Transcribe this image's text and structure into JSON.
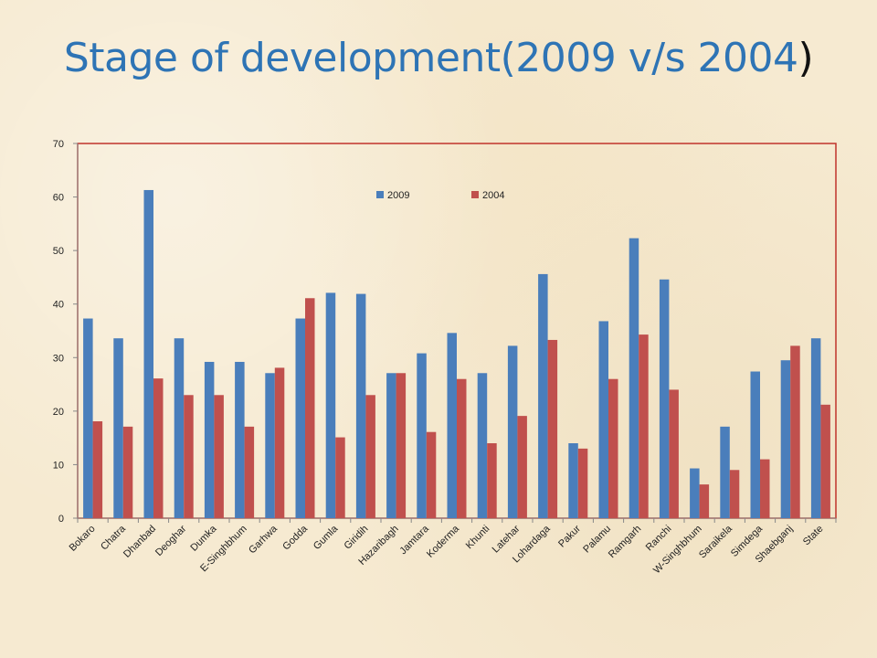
{
  "slide": {
    "title_main": "Stage of development(2009 v/s 2004",
    "title_close": ")"
  },
  "chart_data": {
    "type": "bar",
    "title": "",
    "xlabel": "",
    "ylabel": "",
    "ylim": [
      0,
      70
    ],
    "yticks": [
      0,
      10,
      20,
      30,
      40,
      50,
      60,
      70
    ],
    "grid": false,
    "legend_placement": "top-center",
    "categories": [
      "Bokaro",
      "Chatra",
      "Dhanbad",
      "Deoghar",
      "Dumka",
      "E-Singhbhum",
      "Garhwa",
      "Godda",
      "Gumla",
      "Giridih",
      "Hazaribagh",
      "Jamtara",
      "Koderma",
      "Khunti",
      "Latehar",
      "Lohardaga",
      "Pakur",
      "Palamu",
      "Ramgarh",
      "Ranchi",
      "W-Singhbhum",
      "Saraikela",
      "Simdega",
      "Shaebganj",
      "State"
    ],
    "series": [
      {
        "name": "2009",
        "color": "#4a7ebb",
        "values": [
          37.3,
          33.6,
          61.3,
          33.6,
          29.2,
          29.2,
          27.1,
          37.3,
          42.1,
          41.9,
          27.1,
          30.8,
          34.6,
          27.1,
          32.2,
          45.6,
          14.0,
          36.8,
          52.3,
          44.6,
          9.3,
          17.1,
          27.4,
          29.5,
          33.6
        ]
      },
      {
        "name": "2004",
        "color": "#c0504d",
        "values": [
          18.1,
          17.1,
          26.1,
          23.0,
          23.0,
          17.1,
          28.1,
          41.1,
          15.1,
          23.0,
          27.1,
          16.1,
          26.0,
          14.0,
          19.1,
          33.3,
          13.0,
          26.0,
          34.3,
          24.0,
          6.3,
          9.0,
          11.0,
          32.2,
          21.2
        ]
      }
    ]
  }
}
